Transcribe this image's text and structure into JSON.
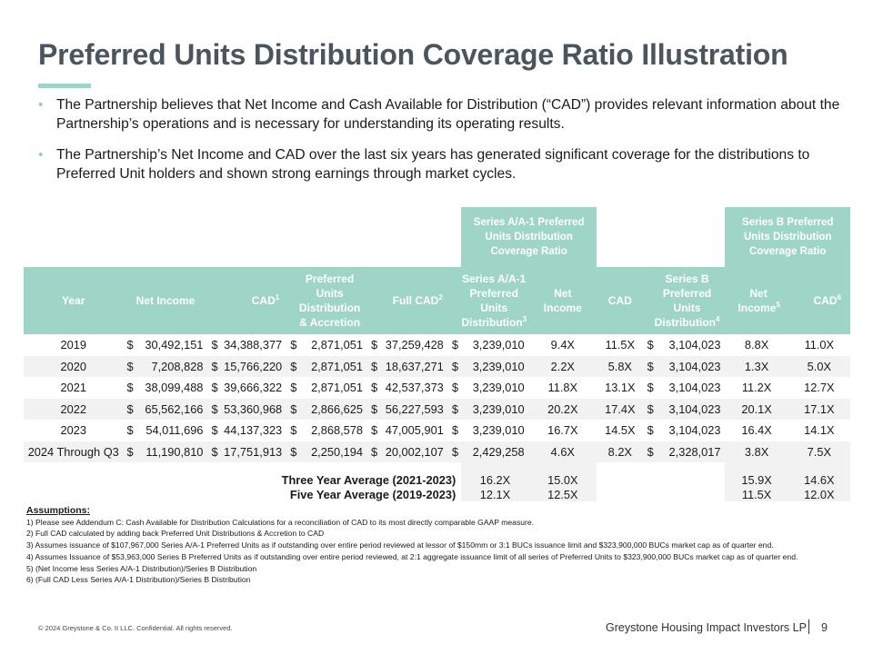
{
  "title": "Preferred Units Distribution Coverage Ratio Illustration",
  "bullets": [
    "The Partnership believes that Net Income and Cash Available for Distribution (“CAD”) provides relevant information about the Partnership’s operations and is necessary for understanding its operating results.",
    "The Partnership’s Net Income and CAD over the last six years has generated significant coverage for the distributions to Preferred Unit holders and shown strong earnings through market cycles."
  ],
  "bullet_marker": "•",
  "table": {
    "group_headers": {
      "series_a": "Series A/A-1 Preferred Units Distribution Coverage Ratio",
      "series_b": "Series B Preferred Units Distribution Coverage Ratio"
    },
    "columns": {
      "year": "Year",
      "net_income": "Net Income",
      "cad": "CAD",
      "cad_sup": "1",
      "pref_dist": "Preferred Units Distribution & Accretion",
      "full_cad": "Full CAD",
      "full_cad_sup": "2",
      "series_a_dist": "Series A/A-1 Preferred Units Distribution",
      "series_a_dist_sup": "3",
      "a_net_income": "Net Income",
      "a_cad": "CAD",
      "series_b_dist": "Series B Preferred Units Distribution",
      "series_b_dist_sup": "4",
      "b_net_income": "Net Income",
      "b_net_income_sup": "5",
      "b_cad": "CAD",
      "b_cad_sup": "6"
    },
    "currency": "$",
    "rows": [
      {
        "year": "2019",
        "net_income": "30,492,151",
        "cad": "34,388,377",
        "pref_dist": "2,871,051",
        "full_cad": "37,259,428",
        "series_a_dist": "3,239,010",
        "a_ni": "9.4X",
        "a_cad": "11.5X",
        "series_b_dist": "3,104,023",
        "b_ni": "8.8X",
        "b_cad": "11.0X"
      },
      {
        "year": "2020",
        "net_income": "7,208,828",
        "cad": "15,766,220",
        "pref_dist": "2,871,051",
        "full_cad": "18,637,271",
        "series_a_dist": "3,239,010",
        "a_ni": "2.2X",
        "a_cad": "5.8X",
        "series_b_dist": "3,104,023",
        "b_ni": "1.3X",
        "b_cad": "5.0X"
      },
      {
        "year": "2021",
        "net_income": "38,099,488",
        "cad": "39,666,322",
        "pref_dist": "2,871,051",
        "full_cad": "42,537,373",
        "series_a_dist": "3,239,010",
        "a_ni": "11.8X",
        "a_cad": "13.1X",
        "series_b_dist": "3,104,023",
        "b_ni": "11.2X",
        "b_cad": "12.7X"
      },
      {
        "year": "2022",
        "net_income": "65,562,166",
        "cad": "53,360,968",
        "pref_dist": "2,866,625",
        "full_cad": "56,227,593",
        "series_a_dist": "3,239,010",
        "a_ni": "20.2X",
        "a_cad": "17.4X",
        "series_b_dist": "3,104,023",
        "b_ni": "20.1X",
        "b_cad": "17.1X"
      },
      {
        "year": "2023",
        "net_income": "54,011,696",
        "cad": "44,137,323",
        "pref_dist": "2,868,578",
        "full_cad": "47,005,901",
        "series_a_dist": "3,239,010",
        "a_ni": "16.7X",
        "a_cad": "14.5X",
        "series_b_dist": "3,104,023",
        "b_ni": "16.4X",
        "b_cad": "14.1X"
      },
      {
        "year": "2024 Through Q3",
        "net_income": "11,190,810",
        "cad": "17,751,913",
        "pref_dist": "2,250,194",
        "full_cad": "20,002,107",
        "series_a_dist": "2,429,258",
        "a_ni": "4.6X",
        "a_cad": "8.2X",
        "series_b_dist": "2,328,017",
        "b_ni": "3.8X",
        "b_cad": "7.5X"
      }
    ],
    "averages": [
      {
        "label": "Three Year Average (2021-2023)",
        "a_ni": "16.2X",
        "a_cad": "15.0X",
        "b_ni": "15.9X",
        "b_cad": "14.6X"
      },
      {
        "label": "Five Year Average (2019-2023)",
        "a_ni": "12.1X",
        "a_cad": "12.5X",
        "b_ni": "11.5X",
        "b_cad": "12.0X"
      }
    ]
  },
  "assumptions": {
    "heading": "Assumptions:",
    "items": [
      "1) Please see Addendum C: Cash Available for Distribution Calculations for a reconciliation of CAD to its most directly comparable GAAP measure.",
      "2) Full CAD calculated by adding back Preferred Unit Distributions & Accretion to CAD",
      "3) Assumes issuance of $107,967,000 Series A/A-1 Preferred Units as if outstanding over entire period reviewed at lessor of $150mm or 3:1 BUCs issuance limit and $323,900,000 BUCs market cap as of quarter end.",
      "4) Assumes Issuance of $53,963,000 Series B Preferred Units as if outstanding over entire period reviewed, at  2:1 aggregate issuance limit of all series of Preferred Units to $323,900,000 BUCs market cap as of quarter end.",
      "5) (Net Income less Series A/A-1 Distribution)/Series B Distribution",
      "6) (Full CAD Less Series A/A-1 Distribution)/Series B Distribution"
    ]
  },
  "footer": {
    "copyright": "© 2024 Greystone & Co. II LLC. Confidential. All rights reserved.",
    "company": "Greystone Housing Impact Investors LP",
    "page": "9"
  },
  "colors": {
    "title": "#4b555e",
    "accent": "#9fd5c7",
    "row_shade": "#f2f2f2"
  }
}
